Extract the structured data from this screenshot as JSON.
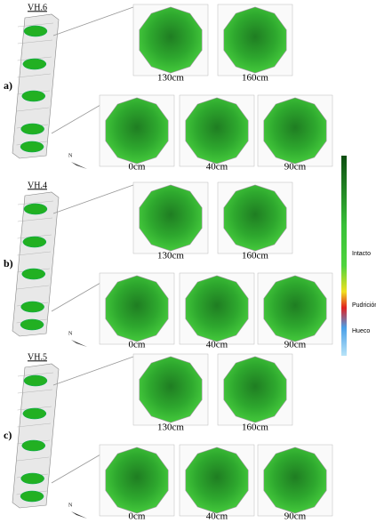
{
  "panels": [
    {
      "letter": "a)",
      "tree": "VH.6",
      "heights": [
        "130cm",
        "160cm",
        "0cm",
        "40cm",
        "90cm"
      ]
    },
    {
      "letter": "b)",
      "tree": "VH.4",
      "heights": [
        "130cm",
        "160cm",
        "0cm",
        "40cm",
        "90cm"
      ]
    },
    {
      "letter": "c)",
      "tree": "VH.5",
      "heights": [
        "130cm",
        "160cm",
        "0cm",
        "40cm",
        "90cm"
      ]
    }
  ],
  "compass": "N",
  "legend": {
    "labels": [
      "Intacto",
      "Pudrición",
      "Hueco"
    ]
  }
}
